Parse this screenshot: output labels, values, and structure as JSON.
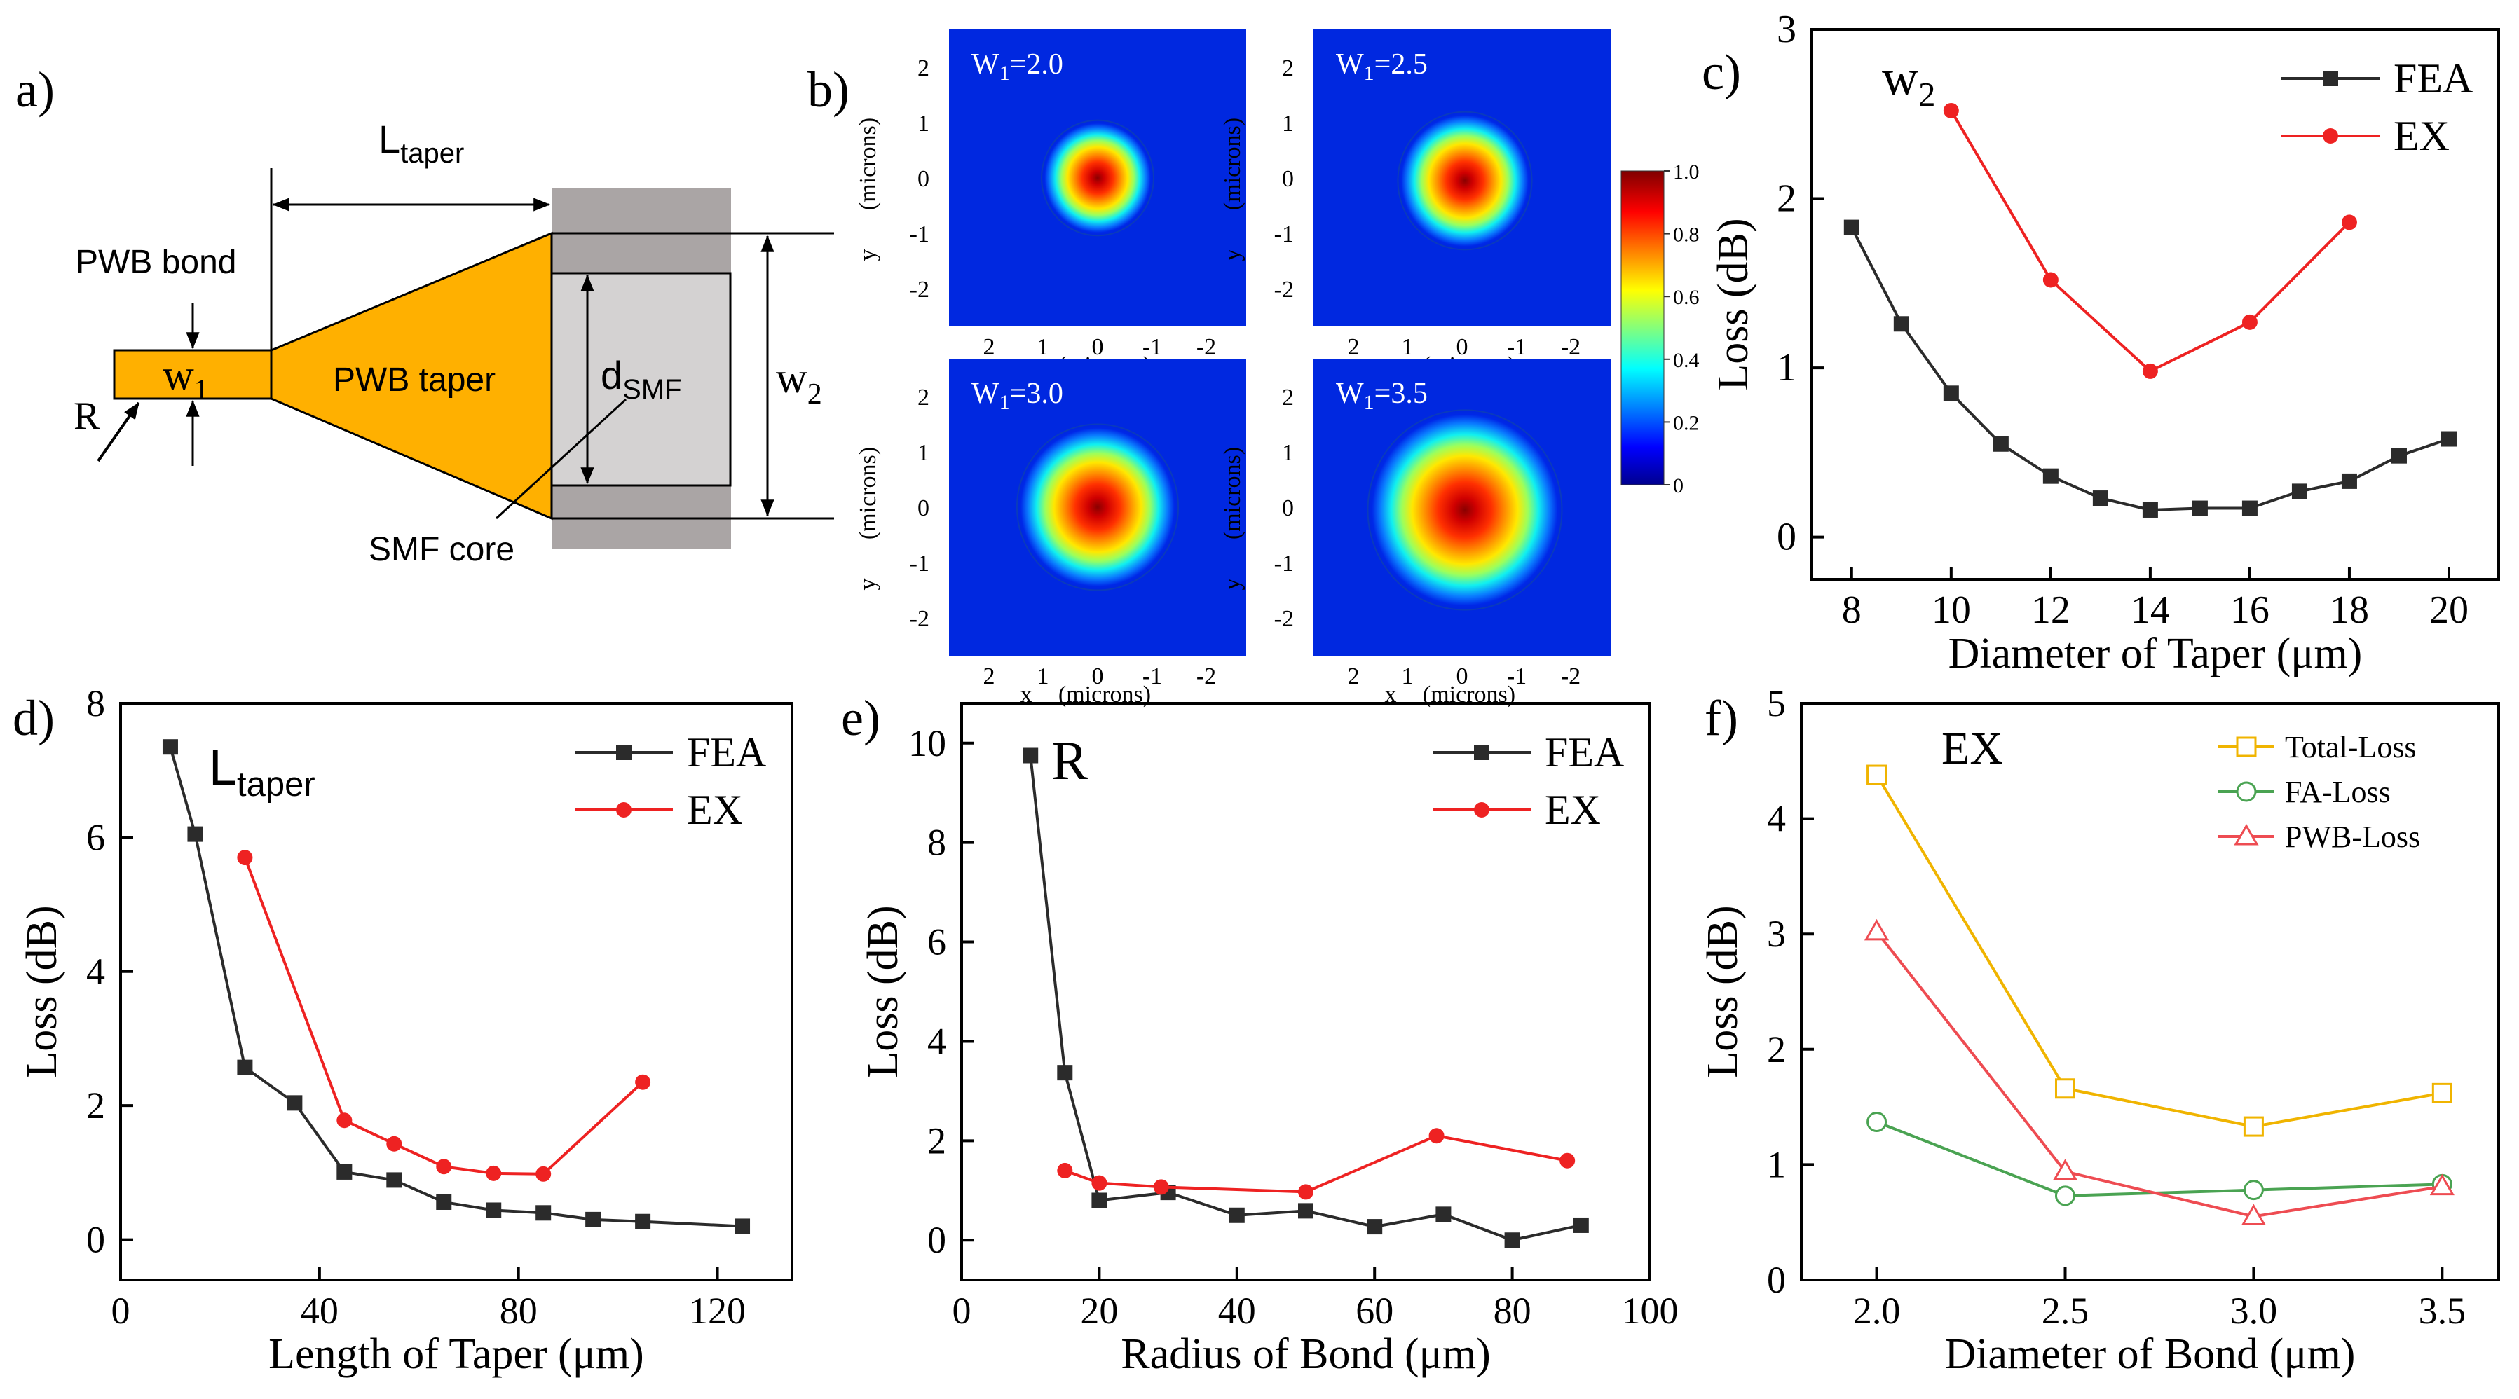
{
  "figure": {
    "panel_labels": [
      "a)",
      "b)",
      "c)",
      "d)",
      "e)",
      "f)"
    ]
  },
  "schematic": {
    "l_taper_label": "L",
    "l_taper_sub": "taper",
    "pwb_bond_label": "PWB bond",
    "w1_label": "w",
    "w1_sub": "1",
    "r_label": "R",
    "pwb_taper_label": "PWB taper",
    "dsmf_label": "d",
    "dsmf_sub": "SMF",
    "w2_label": "w",
    "w2_sub": "2",
    "smf_core_label": "SMF core",
    "colors": {
      "taper": "#ffb000",
      "cladding": "#aaa5a5",
      "core": "#d4d2d2"
    }
  },
  "modes": {
    "panels": [
      {
        "w_label": "W",
        "w_sub": "1",
        "w_value": "=2.0",
        "beam_radius": 1.0
      },
      {
        "w_label": "W",
        "w_sub": "1",
        "w_value": "=2.5",
        "beam_radius": 1.2
      },
      {
        "w_label": "W",
        "w_sub": "1",
        "w_value": "=3.0",
        "beam_radius": 1.45
      },
      {
        "w_label": "W",
        "w_sub": "1",
        "w_value": "=3.5",
        "beam_radius": 1.75
      }
    ],
    "xticks": [
      "2",
      "1",
      "0",
      "-1",
      "-2"
    ],
    "yticks": [
      "2",
      "1",
      "0",
      "-1",
      "-2"
    ],
    "x_axis_prefix": "x",
    "y_axis_prefix": "y",
    "axis_unit": "(microns)",
    "colorbar_ticks": [
      "1.0",
      "0.8",
      "0.6",
      "0.4",
      "0.2",
      "0"
    ]
  },
  "chart_data": [
    {
      "id": "c",
      "type": "line",
      "title": "w",
      "title_sub": "2",
      "xlabel": "Diameter of Taper (μm)",
      "ylabel": "Loss (dB)",
      "xlim": [
        7.2,
        21
      ],
      "ylim": [
        -0.25,
        3
      ],
      "xticks": [
        8,
        10,
        12,
        14,
        16,
        18,
        20
      ],
      "yticks": [
        0,
        1,
        2,
        3
      ],
      "legend": "top-right",
      "series": [
        {
          "name": "FEA",
          "color": "#2b2b2b",
          "marker": "square",
          "x": [
            8,
            9,
            10,
            11,
            12,
            13,
            14,
            15,
            16,
            17,
            18,
            19,
            20
          ],
          "y": [
            1.83,
            1.26,
            0.85,
            0.55,
            0.36,
            0.23,
            0.16,
            0.17,
            0.17,
            0.27,
            0.33,
            0.48,
            0.58
          ]
        },
        {
          "name": "EX",
          "color": "#ee2222",
          "marker": "circle",
          "x": [
            10,
            12,
            14,
            16,
            18
          ],
          "y": [
            2.52,
            1.52,
            0.98,
            1.27,
            1.86
          ]
        }
      ]
    },
    {
      "id": "d",
      "type": "line",
      "title": "L",
      "title_sub": "taper",
      "xlabel": "Length of Taper (μm)",
      "ylabel": "Loss (dB)",
      "xlim": [
        0,
        135
      ],
      "ylim": [
        -0.6,
        8
      ],
      "xticks": [
        0,
        40,
        80,
        120
      ],
      "yticks": [
        0,
        2,
        4,
        6,
        8
      ],
      "legend": "top-right",
      "series": [
        {
          "name": "FEA",
          "color": "#2b2b2b",
          "marker": "square",
          "x": [
            10,
            15,
            25,
            35,
            45,
            55,
            65,
            75,
            85,
            95,
            105,
            125
          ],
          "y": [
            7.35,
            6.05,
            2.57,
            2.04,
            1.01,
            0.89,
            0.56,
            0.44,
            0.4,
            0.3,
            0.27,
            0.2
          ]
        },
        {
          "name": "EX",
          "color": "#ee2222",
          "marker": "circle",
          "x": [
            25,
            45,
            55,
            65,
            75,
            85,
            105
          ],
          "y": [
            5.7,
            1.78,
            1.43,
            1.09,
            0.99,
            0.98,
            2.35
          ]
        }
      ]
    },
    {
      "id": "e",
      "type": "line",
      "title": "R",
      "xlabel": "Radius of Bond (μm)",
      "ylabel": "Loss (dB)",
      "xlim": [
        0,
        100
      ],
      "ylim": [
        -0.8,
        10.8
      ],
      "xticks": [
        0,
        20,
        40,
        60,
        80,
        100
      ],
      "yticks": [
        0,
        2,
        4,
        6,
        8,
        10
      ],
      "legend": "top-right",
      "series": [
        {
          "name": "FEA",
          "color": "#2b2b2b",
          "marker": "square",
          "x": [
            10,
            15,
            20,
            30,
            40,
            50,
            60,
            70,
            80,
            90
          ],
          "y": [
            9.75,
            3.37,
            0.8,
            0.96,
            0.5,
            0.59,
            0.27,
            0.52,
            0.0,
            0.3
          ]
        },
        {
          "name": "EX",
          "color": "#ee2222",
          "marker": "circle",
          "x": [
            15,
            20,
            29,
            50,
            69,
            88
          ],
          "y": [
            1.4,
            1.15,
            1.07,
            0.97,
            2.1,
            1.6
          ]
        }
      ]
    },
    {
      "id": "f",
      "type": "line",
      "title": "EX",
      "xlabel": "Diameter of Bond (μm)",
      "ylabel": "Loss (dB)",
      "xlim": [
        1.8,
        3.65
      ],
      "ylim": [
        0,
        5
      ],
      "xticks": [
        2.0,
        2.5,
        3.0,
        3.5
      ],
      "xtick_labels": [
        "2.0",
        "2.5",
        "3.0",
        "3.5"
      ],
      "yticks": [
        0,
        1,
        2,
        3,
        4,
        5
      ],
      "legend": "top-right",
      "series": [
        {
          "name": "Total-Loss",
          "color": "#f0b400",
          "marker": "open-square",
          "x": [
            2.0,
            2.5,
            3.0,
            3.5
          ],
          "y": [
            4.38,
            1.66,
            1.33,
            1.62
          ]
        },
        {
          "name": "FA-Loss",
          "color": "#4aa352",
          "marker": "open-circle",
          "x": [
            2.0,
            2.5,
            3.0,
            3.5
          ],
          "y": [
            1.37,
            0.73,
            0.78,
            0.83
          ]
        },
        {
          "name": "PWB-Loss",
          "color": "#ee4c52",
          "marker": "open-triangle",
          "x": [
            2.0,
            2.5,
            3.0,
            3.5
          ],
          "y": [
            3.02,
            0.94,
            0.55,
            0.81
          ]
        }
      ]
    }
  ]
}
